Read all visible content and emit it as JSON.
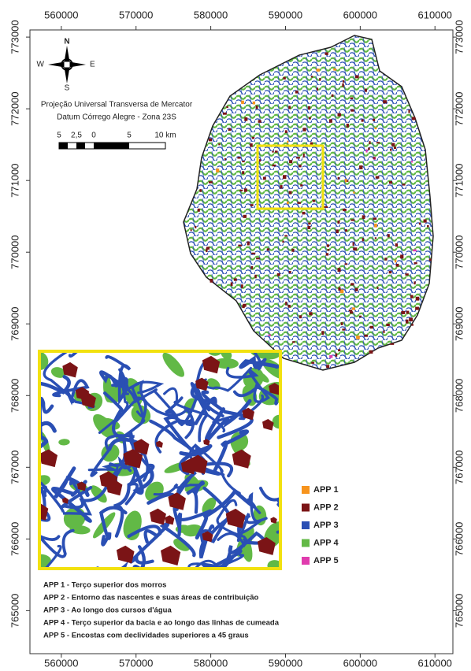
{
  "map": {
    "xlim": [
      555800,
      612400
    ],
    "ylim": [
      764400,
      773100
    ],
    "xticks": [
      560000,
      570000,
      580000,
      590000,
      600000,
      610000
    ],
    "yticks": [
      765000,
      766000,
      767000,
      768000,
      769000,
      770000,
      771000,
      772000,
      773000
    ]
  },
  "north_arrow": {
    "n": "N",
    "e": "E",
    "s": "S",
    "w": "W"
  },
  "projection": [
    "Projeção Universal Transversa de Mercator",
    "Datum Córrego Alegre - Zona 23S"
  ],
  "scale_bar": [
    "5",
    "2,5",
    "0",
    "5",
    "10 km"
  ],
  "legend": [
    {
      "label": "APP 1",
      "color": "#f7941d"
    },
    {
      "label": "APP 2",
      "color": "#7b1416"
    },
    {
      "label": "APP 3",
      "color": "#2a4fb4"
    },
    {
      "label": "APP 4",
      "color": "#62b946"
    },
    {
      "label": "APP 5",
      "color": "#e03cae"
    }
  ],
  "descriptions": [
    "APP 1 - Terço superior dos morros",
    "APP 2 - Entorno das nascentes e suas áreas de contribuição",
    "APP 3 - Ao longo dos cursos d'água",
    "APP 4 - Terço superior da bacia e ao longo das linhas de cumeada",
    "APP 5 - Encostas com declividades superiores a 45 graus"
  ]
}
